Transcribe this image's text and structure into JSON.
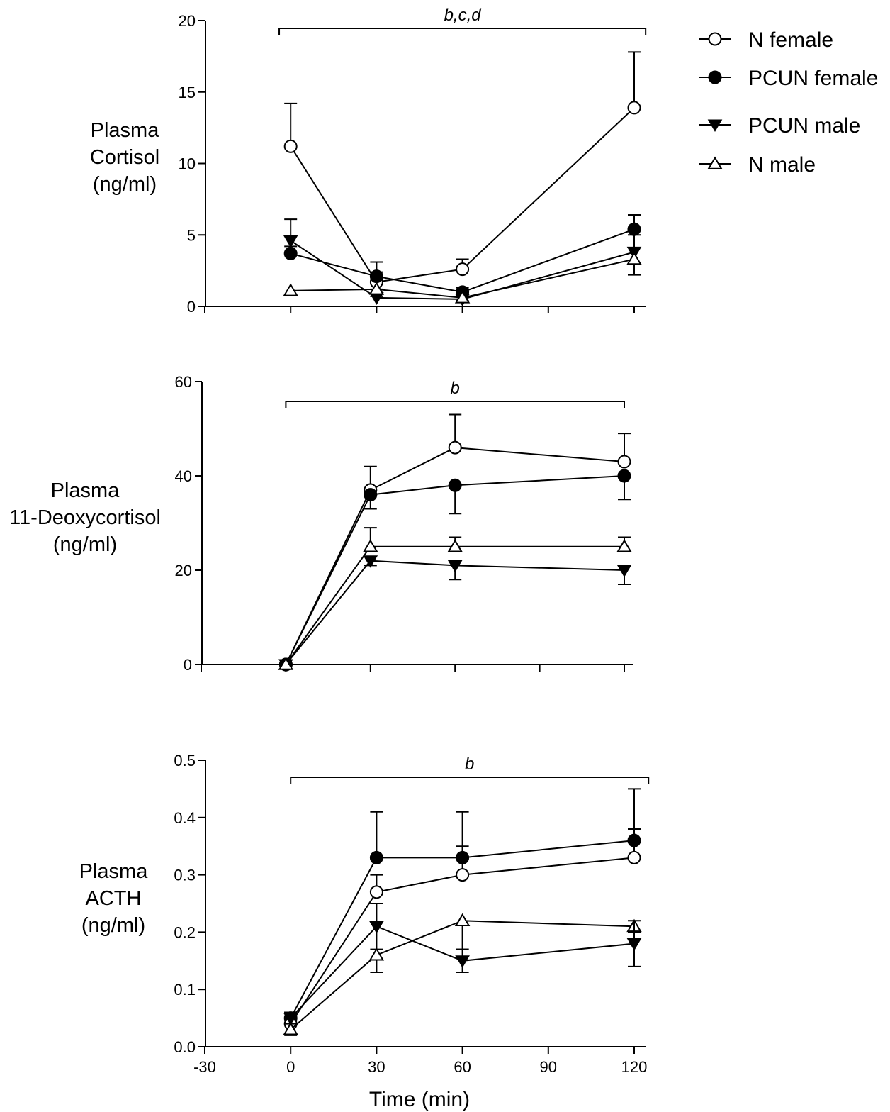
{
  "figure": {
    "legend_position": "top-right"
  },
  "legend": [
    {
      "label": "N female",
      "marker": "open-circle-icon"
    },
    {
      "label": "PCUN female",
      "marker": "filled-circle-icon"
    },
    {
      "label": "PCUN male",
      "marker": "filled-down-triangle-icon"
    },
    {
      "label": "N male",
      "marker": "open-up-triangle-icon"
    }
  ],
  "chart_data": [
    {
      "type": "line",
      "ylabel": [
        "Plasma",
        "Cortisol",
        "(ng/ml)"
      ],
      "xlabel": "",
      "ylim": [
        0,
        20
      ],
      "yticks": [
        "0",
        "5",
        "10",
        "15",
        "20"
      ],
      "xlim": [
        -30,
        125
      ],
      "xticks": [],
      "annotation": {
        "text": "b,c,d",
        "x_start": -4,
        "x_end": 124
      },
      "x": [
        0,
        30,
        60,
        120
      ],
      "series": [
        {
          "name": "N female",
          "marker": "open-circle",
          "values": [
            11.2,
            1.7,
            2.6,
            13.9
          ],
          "errors": [
            3.0,
            0.7,
            0.7,
            3.9
          ],
          "error_direction": "up"
        },
        {
          "name": "PCUN female",
          "marker": "filled-circle",
          "values": [
            3.7,
            2.1,
            1.0,
            5.4
          ],
          "errors": [
            0.5,
            1.0,
            0.3,
            1.0
          ],
          "error_direction": "up"
        },
        {
          "name": "PCUN male",
          "marker": "filled-down-triangle",
          "values": [
            4.6,
            0.6,
            0.5,
            3.8
          ],
          "errors": [
            1.5,
            0.6,
            0.2,
            1.2
          ],
          "error_direction": "up"
        },
        {
          "name": "N male",
          "marker": "open-up-triangle",
          "values": [
            1.1,
            1.2,
            0.6,
            3.3
          ],
          "errors": [
            0.3,
            0.5,
            0.2,
            1.1
          ],
          "error_direction": "down"
        }
      ]
    },
    {
      "type": "line",
      "ylabel": [
        "Plasma",
        "11-Deoxycortisol",
        "(ng/ml)"
      ],
      "xlabel": "",
      "ylim": [
        0,
        60
      ],
      "yticks": [
        "0",
        "20",
        "40",
        "60"
      ],
      "xlim": [
        -30,
        125
      ],
      "xticks": [],
      "annotation": {
        "text": "b",
        "x_start": 0,
        "x_end": 120
      },
      "x": [
        0,
        30,
        60,
        120
      ],
      "series": [
        {
          "name": "N female",
          "marker": "open-circle",
          "values": [
            0,
            37,
            46,
            43
          ],
          "errors": [
            0,
            5,
            7,
            6
          ],
          "error_direction": "up"
        },
        {
          "name": "PCUN female",
          "marker": "filled-circle",
          "values": [
            0,
            36,
            38,
            40
          ],
          "errors": [
            0,
            3,
            6,
            5
          ],
          "error_direction": "down"
        },
        {
          "name": "PCUN male",
          "marker": "filled-down-triangle",
          "values": [
            0,
            22,
            21,
            20
          ],
          "errors": [
            0,
            1,
            3,
            3
          ],
          "error_direction": "down"
        },
        {
          "name": "N male",
          "marker": "open-up-triangle",
          "values": [
            0,
            25,
            25,
            25
          ],
          "errors": [
            0,
            4,
            2,
            2
          ],
          "error_direction": "up"
        }
      ]
    },
    {
      "type": "line",
      "ylabel": [
        "Plasma",
        "ACTH",
        "(ng/ml)"
      ],
      "xlabel": "Time (min)",
      "ylim": [
        0,
        0.5
      ],
      "yticks": [
        "0.0",
        "0.1",
        "0.2",
        "0.3",
        "0.4",
        "0.5"
      ],
      "xlim": [
        -30,
        125
      ],
      "xticks": [
        "-30",
        "0",
        "30",
        "60",
        "90",
        "120"
      ],
      "annotation": {
        "text": "b",
        "x_start": 0,
        "x_end": 125
      },
      "x": [
        0,
        30,
        60,
        120
      ],
      "series": [
        {
          "name": "PCUN female",
          "marker": "filled-circle",
          "values": [
            0.05,
            0.33,
            0.33,
            0.36
          ],
          "errors": [
            0.01,
            0.08,
            0.08,
            0.09
          ],
          "error_direction": "up"
        },
        {
          "name": "N female",
          "marker": "open-circle",
          "values": [
            0.04,
            0.27,
            0.3,
            0.33
          ],
          "errors": [
            0.02,
            0.03,
            0.05,
            0.05
          ],
          "error_direction": "up"
        },
        {
          "name": "N male",
          "marker": "open-up-triangle",
          "values": [
            0.03,
            0.16,
            0.22,
            0.21
          ],
          "errors": [
            0.01,
            0.03,
            0.05,
            0.01
          ],
          "error_direction": "down"
        },
        {
          "name": "PCUN male",
          "marker": "filled-down-triangle",
          "values": [
            0.05,
            0.21,
            0.15,
            0.18
          ],
          "errors": [
            0.01,
            0.04,
            0.02,
            0.04
          ],
          "error_direction": "updown"
        }
      ]
    }
  ]
}
